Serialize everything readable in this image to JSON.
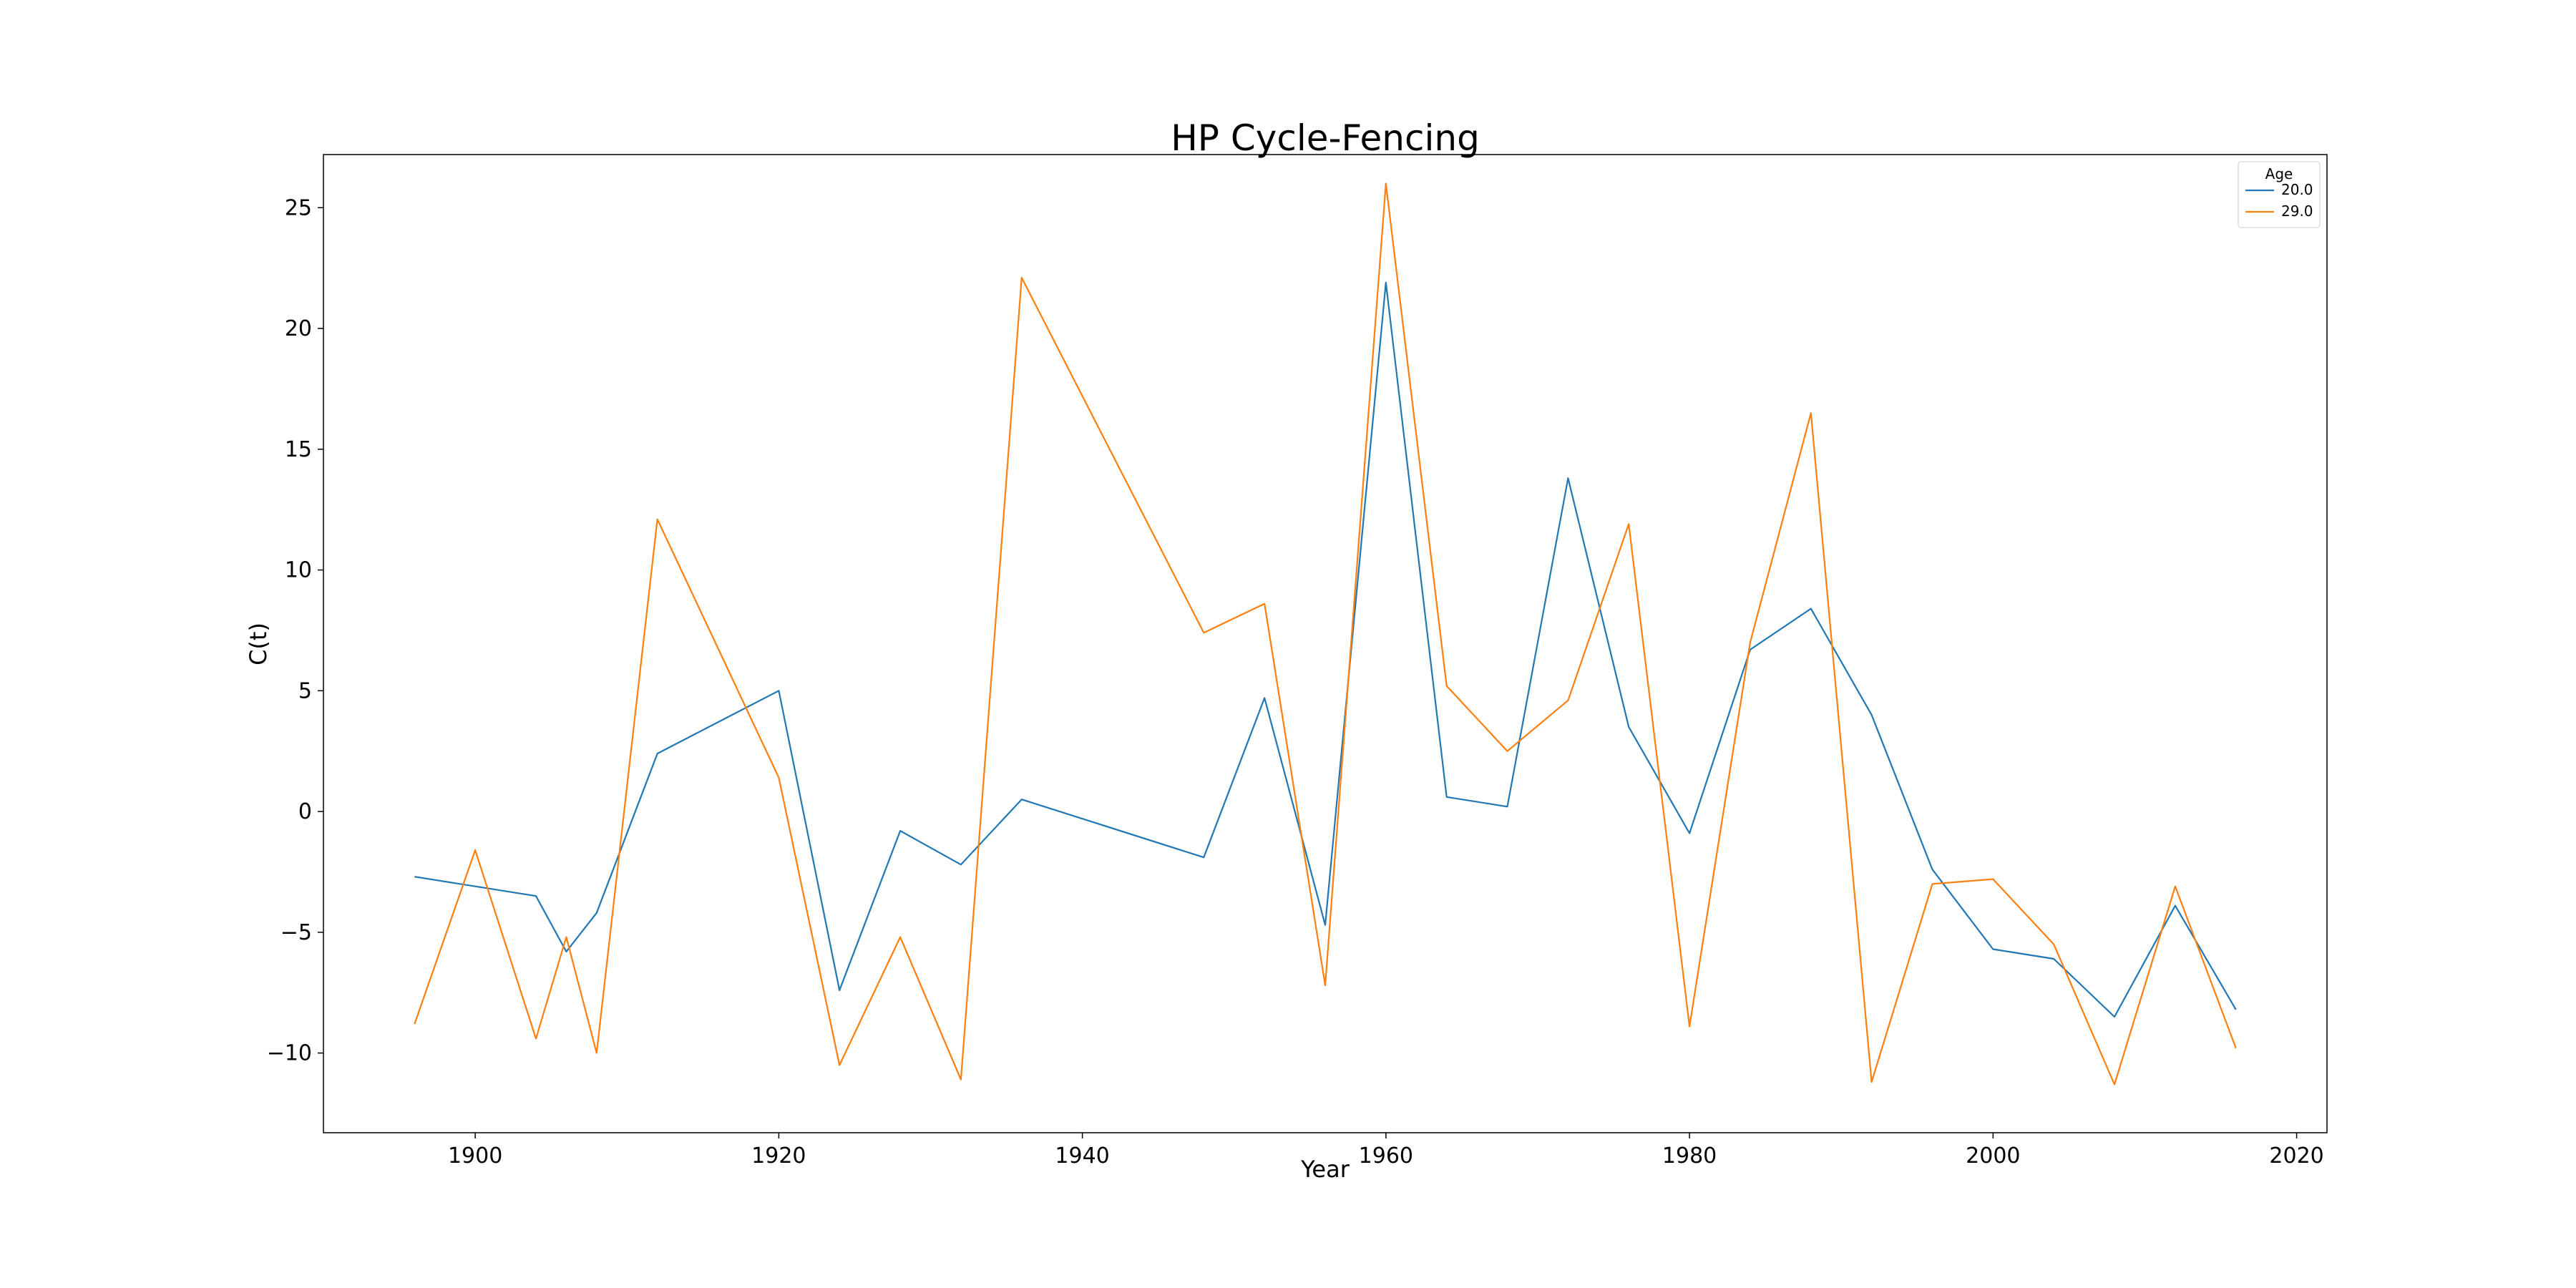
{
  "chart_data": {
    "type": "line",
    "title": "HP Cycle-Fencing",
    "xlabel": "Year",
    "ylabel": "C(t)",
    "xlim": [
      1890,
      2022
    ],
    "ylim": [
      -13.3,
      27.2
    ],
    "xticks": [
      1900,
      1920,
      1940,
      1960,
      1980,
      2000,
      2020
    ],
    "yticks": [
      -10,
      -5,
      0,
      5,
      10,
      15,
      20,
      25
    ],
    "grid": false,
    "legend": {
      "title": "Age",
      "placement": "top-right"
    },
    "series": [
      {
        "name": "20.0",
        "color": "#1f77b4",
        "points": [
          [
            1896,
            -2.7
          ],
          [
            1904,
            -3.5
          ],
          [
            1906,
            -5.8
          ],
          [
            1908,
            -4.2
          ],
          [
            1912,
            2.4
          ],
          [
            1920,
            5.0
          ],
          [
            1924,
            -7.4
          ],
          [
            1928,
            -0.8
          ],
          [
            1932,
            -2.2
          ],
          [
            1936,
            0.5
          ],
          [
            1948,
            -1.9
          ],
          [
            1952,
            4.7
          ],
          [
            1956,
            -4.7
          ],
          [
            1960,
            21.9
          ],
          [
            1964,
            0.6
          ],
          [
            1968,
            0.2
          ],
          [
            1972,
            13.8
          ],
          [
            1976,
            3.5
          ],
          [
            1980,
            -0.9
          ],
          [
            1984,
            6.7
          ],
          [
            1988,
            8.4
          ],
          [
            1992,
            4.0
          ],
          [
            1996,
            -2.4
          ],
          [
            2000,
            -5.7
          ],
          [
            2004,
            -6.1
          ],
          [
            2008,
            -8.5
          ],
          [
            2012,
            -3.9
          ],
          [
            2016,
            -8.2
          ]
        ]
      },
      {
        "name": "29.0",
        "color": "#ff7f0e",
        "points": [
          [
            1896,
            -8.8
          ],
          [
            1900,
            -1.6
          ],
          [
            1904,
            -9.4
          ],
          [
            1906,
            -5.2
          ],
          [
            1908,
            -10.0
          ],
          [
            1912,
            12.1
          ],
          [
            1920,
            1.4
          ],
          [
            1924,
            -10.5
          ],
          [
            1928,
            -5.2
          ],
          [
            1932,
            -11.1
          ],
          [
            1936,
            22.1
          ],
          [
            1948,
            7.4
          ],
          [
            1952,
            8.6
          ],
          [
            1956,
            -7.2
          ],
          [
            1960,
            26.0
          ],
          [
            1964,
            5.2
          ],
          [
            1968,
            2.5
          ],
          [
            1972,
            4.6
          ],
          [
            1976,
            11.9
          ],
          [
            1980,
            -8.9
          ],
          [
            1984,
            7.0
          ],
          [
            1988,
            16.5
          ],
          [
            1992,
            -11.2
          ],
          [
            1996,
            -3.0
          ],
          [
            2000,
            -2.8
          ],
          [
            2004,
            -5.5
          ],
          [
            2008,
            -11.3
          ],
          [
            2012,
            -3.1
          ],
          [
            2016,
            -9.8
          ]
        ]
      }
    ]
  }
}
